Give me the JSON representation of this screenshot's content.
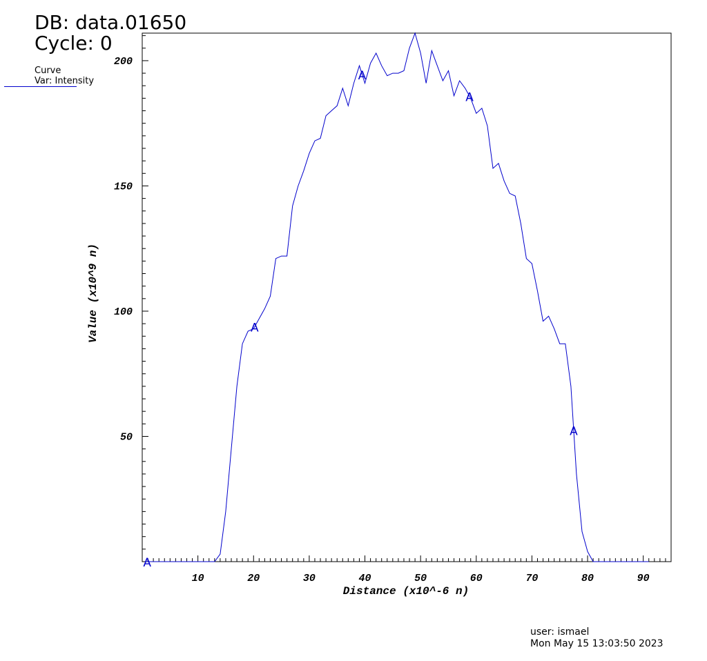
{
  "header": {
    "db_line": "DB: data.01650",
    "cycle_line": "Cycle: 0"
  },
  "legend": {
    "line1": "Curve",
    "line2": "Var: Intensity",
    "color": "#0000cc"
  },
  "footer": {
    "user": "user: ismael",
    "timestamp": "Mon May 15 13:03:50 2023"
  },
  "chart_data": {
    "type": "line",
    "title": "",
    "xlabel": "Distance (x10^-6 n)",
    "ylabel": "Value (x10^9 n)",
    "xlim": [
      0,
      95
    ],
    "ylim": [
      0,
      211
    ],
    "x_ticks": [
      10,
      20,
      30,
      40,
      50,
      60,
      70,
      80,
      90
    ],
    "y_ticks": [
      50,
      100,
      150,
      200
    ],
    "grid": false,
    "line_color": "#0000cc",
    "marker_label": "A",
    "marker_x": [
      0.9,
      20.2,
      39.5,
      58.8,
      77.5
    ],
    "series": [
      {
        "name": "Intensity",
        "x": [
          0.5,
          1,
          5,
          10,
          13,
          14,
          15,
          16,
          17,
          18,
          19,
          20,
          21,
          22,
          23,
          24,
          25,
          26,
          27,
          28,
          29,
          30,
          31,
          32,
          33,
          34,
          35,
          36,
          37,
          38,
          39,
          40,
          41,
          42,
          43,
          44,
          45,
          46,
          47,
          48,
          49,
          50,
          51,
          52,
          53,
          54,
          55,
          56,
          57,
          58,
          59,
          60,
          61,
          62,
          63,
          64,
          65,
          66,
          67,
          68,
          69,
          70,
          71,
          72,
          73,
          74,
          75,
          76,
          77,
          78,
          79,
          80,
          81,
          82,
          85,
          90,
          91
        ],
        "y": [
          0,
          0,
          0,
          0,
          0,
          3,
          20,
          45,
          70,
          87,
          92,
          93,
          97,
          101,
          106,
          121,
          122,
          122,
          142,
          150,
          156,
          163,
          168,
          169,
          178,
          180,
          182,
          189,
          182,
          191,
          198,
          191,
          199,
          203,
          198,
          194,
          195,
          195,
          196,
          205,
          211,
          203,
          191,
          204,
          198,
          192,
          196,
          186,
          192,
          189,
          185,
          179,
          181,
          174,
          157,
          159,
          152,
          147,
          146,
          135,
          121,
          119,
          108,
          96,
          98,
          93,
          87,
          87,
          70,
          35,
          12,
          4,
          0,
          0,
          0,
          0,
          0
        ]
      }
    ]
  }
}
